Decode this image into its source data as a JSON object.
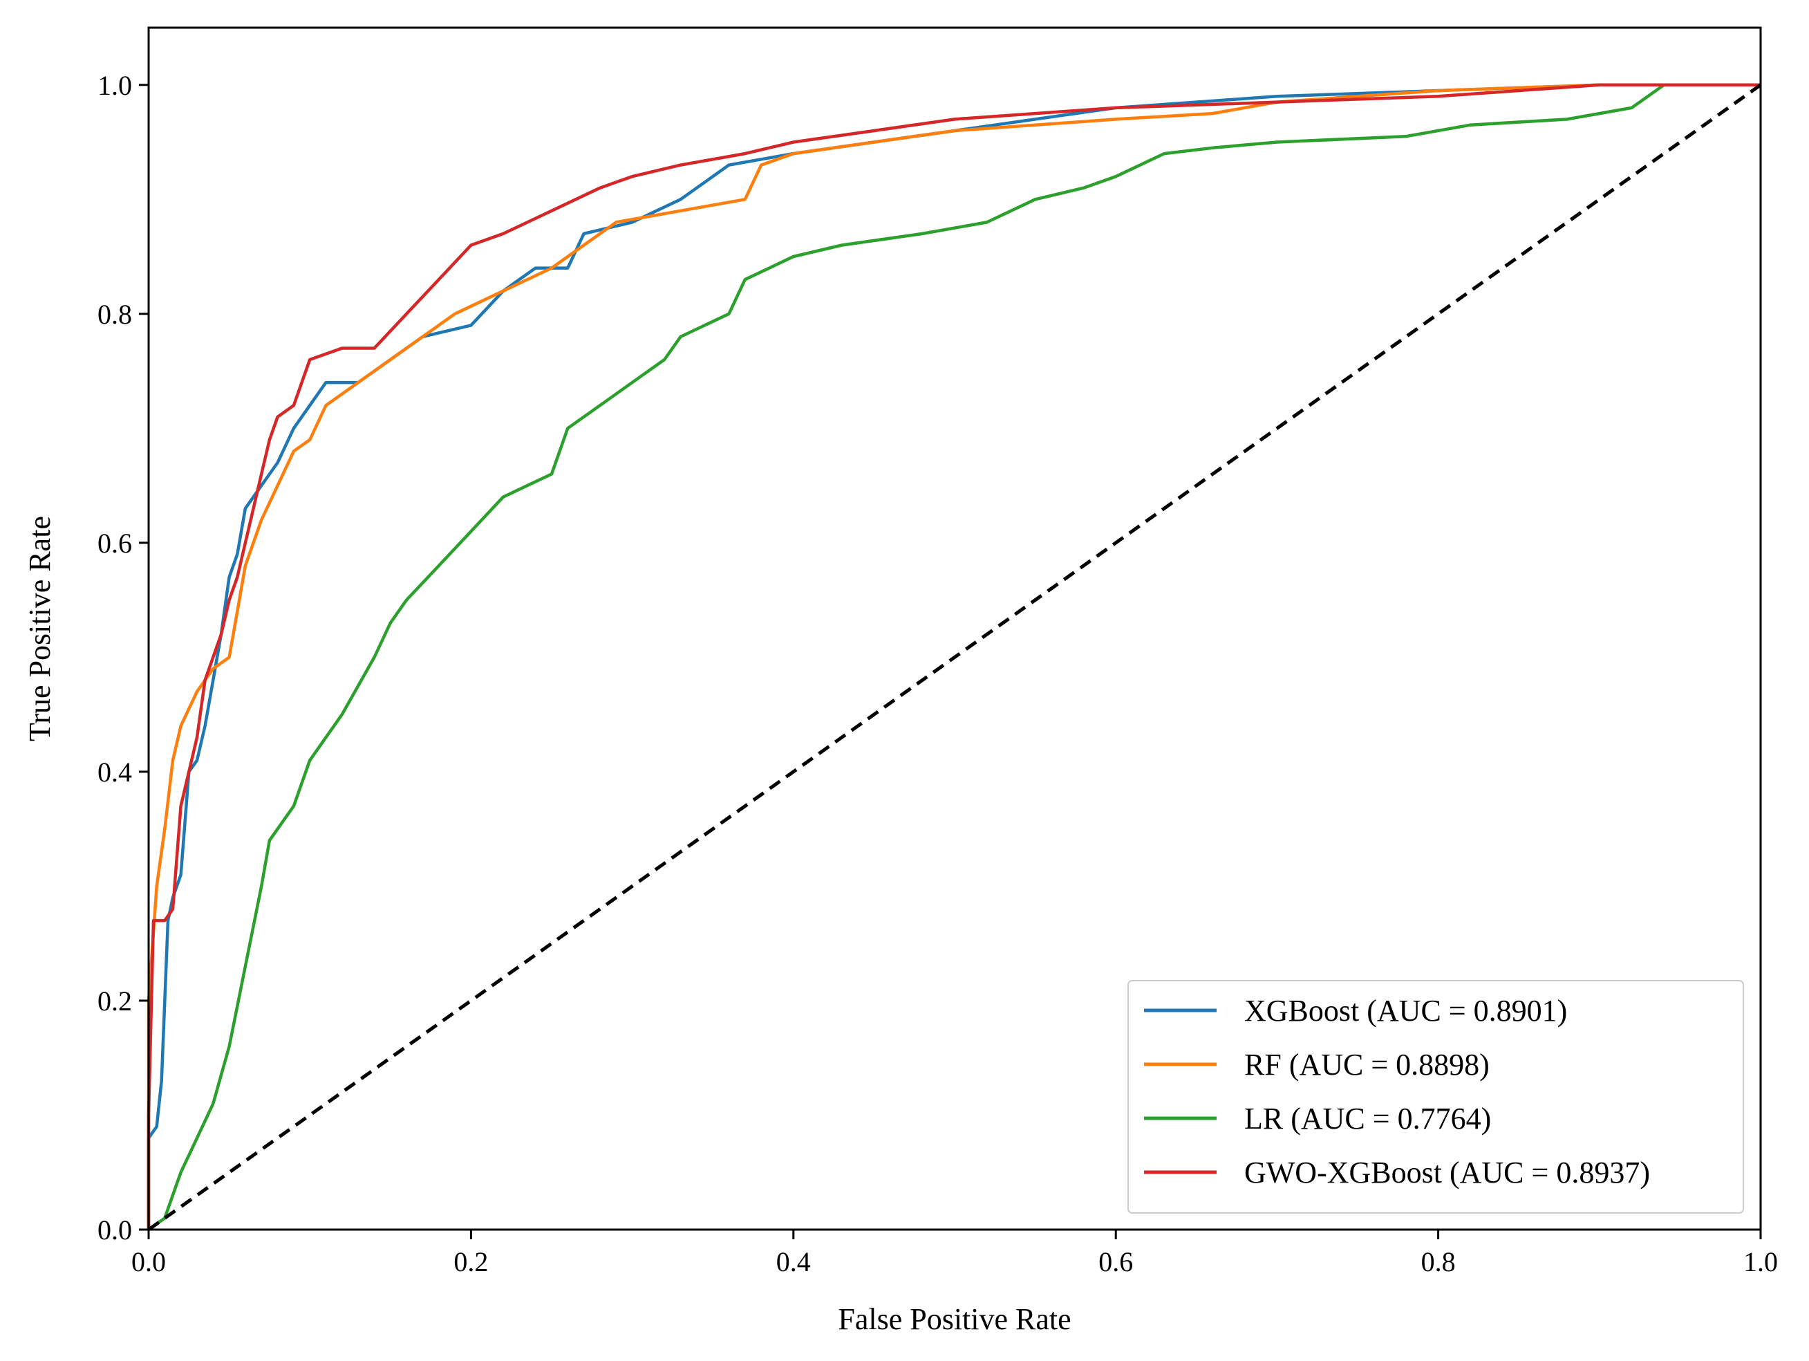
{
  "chart_data": {
    "type": "line",
    "title": "",
    "xlabel": "False Positive Rate",
    "ylabel": "True Positive Rate",
    "xlim": [
      0.0,
      1.0
    ],
    "ylim": [
      0.0,
      1.05
    ],
    "xticks": [
      "0.0",
      "0.2",
      "0.4",
      "0.6",
      "0.8",
      "1.0"
    ],
    "yticks": [
      "0.0",
      "0.2",
      "0.4",
      "0.6",
      "0.8",
      "1.0"
    ],
    "grid": false,
    "legend_position": "lower-right",
    "series": [
      {
        "name": "XGBoost (AUC = 0.8901)",
        "color": "#1f77b4",
        "points": [
          [
            0,
            0
          ],
          [
            0,
            0.08
          ],
          [
            0.005,
            0.09
          ],
          [
            0.008,
            0.13
          ],
          [
            0.012,
            0.27
          ],
          [
            0.015,
            0.29
          ],
          [
            0.02,
            0.31
          ],
          [
            0.025,
            0.4
          ],
          [
            0.03,
            0.41
          ],
          [
            0.035,
            0.44
          ],
          [
            0.04,
            0.48
          ],
          [
            0.045,
            0.52
          ],
          [
            0.05,
            0.57
          ],
          [
            0.055,
            0.59
          ],
          [
            0.06,
            0.63
          ],
          [
            0.065,
            0.64
          ],
          [
            0.07,
            0.65
          ],
          [
            0.075,
            0.66
          ],
          [
            0.08,
            0.67
          ],
          [
            0.09,
            0.7
          ],
          [
            0.1,
            0.72
          ],
          [
            0.11,
            0.74
          ],
          [
            0.13,
            0.74
          ],
          [
            0.15,
            0.76
          ],
          [
            0.17,
            0.78
          ],
          [
            0.2,
            0.79
          ],
          [
            0.22,
            0.82
          ],
          [
            0.24,
            0.84
          ],
          [
            0.26,
            0.84
          ],
          [
            0.27,
            0.87
          ],
          [
            0.3,
            0.88
          ],
          [
            0.33,
            0.9
          ],
          [
            0.36,
            0.93
          ],
          [
            0.4,
            0.94
          ],
          [
            0.45,
            0.95
          ],
          [
            0.5,
            0.96
          ],
          [
            0.55,
            0.97
          ],
          [
            0.6,
            0.98
          ],
          [
            0.65,
            0.985
          ],
          [
            0.7,
            0.99
          ],
          [
            0.8,
            0.995
          ],
          [
            0.9,
            1.0
          ],
          [
            1.0,
            1.0
          ]
        ]
      },
      {
        "name": "RF (AUC = 0.8898)",
        "color": "#ff7f0e",
        "points": [
          [
            0,
            0
          ],
          [
            0,
            0.2
          ],
          [
            0.005,
            0.3
          ],
          [
            0.01,
            0.35
          ],
          [
            0.015,
            0.41
          ],
          [
            0.02,
            0.44
          ],
          [
            0.03,
            0.47
          ],
          [
            0.04,
            0.49
          ],
          [
            0.05,
            0.5
          ],
          [
            0.055,
            0.54
          ],
          [
            0.06,
            0.58
          ],
          [
            0.07,
            0.62
          ],
          [
            0.08,
            0.65
          ],
          [
            0.09,
            0.68
          ],
          [
            0.1,
            0.69
          ],
          [
            0.11,
            0.72
          ],
          [
            0.13,
            0.74
          ],
          [
            0.15,
            0.76
          ],
          [
            0.17,
            0.78
          ],
          [
            0.19,
            0.8
          ],
          [
            0.22,
            0.82
          ],
          [
            0.25,
            0.84
          ],
          [
            0.27,
            0.86
          ],
          [
            0.29,
            0.88
          ],
          [
            0.33,
            0.89
          ],
          [
            0.37,
            0.9
          ],
          [
            0.38,
            0.93
          ],
          [
            0.4,
            0.94
          ],
          [
            0.45,
            0.95
          ],
          [
            0.5,
            0.96
          ],
          [
            0.55,
            0.965
          ],
          [
            0.6,
            0.97
          ],
          [
            0.66,
            0.975
          ],
          [
            0.7,
            0.985
          ],
          [
            0.8,
            0.995
          ],
          [
            0.9,
            1.0
          ],
          [
            1.0,
            1.0
          ]
        ]
      },
      {
        "name": "LR (AUC = 0.7764)",
        "color": "#2ca02c",
        "points": [
          [
            0,
            0
          ],
          [
            0.01,
            0.01
          ],
          [
            0.02,
            0.05
          ],
          [
            0.03,
            0.08
          ],
          [
            0.04,
            0.11
          ],
          [
            0.05,
            0.16
          ],
          [
            0.06,
            0.23
          ],
          [
            0.07,
            0.3
          ],
          [
            0.075,
            0.34
          ],
          [
            0.09,
            0.37
          ],
          [
            0.1,
            0.41
          ],
          [
            0.12,
            0.45
          ],
          [
            0.14,
            0.5
          ],
          [
            0.15,
            0.53
          ],
          [
            0.16,
            0.55
          ],
          [
            0.18,
            0.58
          ],
          [
            0.2,
            0.61
          ],
          [
            0.22,
            0.64
          ],
          [
            0.25,
            0.66
          ],
          [
            0.26,
            0.7
          ],
          [
            0.28,
            0.72
          ],
          [
            0.3,
            0.74
          ],
          [
            0.32,
            0.76
          ],
          [
            0.33,
            0.78
          ],
          [
            0.36,
            0.8
          ],
          [
            0.37,
            0.83
          ],
          [
            0.4,
            0.85
          ],
          [
            0.43,
            0.86
          ],
          [
            0.48,
            0.87
          ],
          [
            0.52,
            0.88
          ],
          [
            0.55,
            0.9
          ],
          [
            0.58,
            0.91
          ],
          [
            0.6,
            0.92
          ],
          [
            0.63,
            0.94
          ],
          [
            0.66,
            0.945
          ],
          [
            0.7,
            0.95
          ],
          [
            0.78,
            0.955
          ],
          [
            0.82,
            0.965
          ],
          [
            0.88,
            0.97
          ],
          [
            0.92,
            0.98
          ],
          [
            0.94,
            1.0
          ],
          [
            1.0,
            1.0
          ]
        ]
      },
      {
        "name": "GWO-XGBoost (AUC = 0.8937)",
        "color": "#d62728",
        "points": [
          [
            0,
            0
          ],
          [
            0,
            0.1
          ],
          [
            0.003,
            0.27
          ],
          [
            0.01,
            0.27
          ],
          [
            0.015,
            0.28
          ],
          [
            0.02,
            0.37
          ],
          [
            0.025,
            0.4
          ],
          [
            0.03,
            0.43
          ],
          [
            0.035,
            0.48
          ],
          [
            0.04,
            0.5
          ],
          [
            0.045,
            0.52
          ],
          [
            0.05,
            0.55
          ],
          [
            0.055,
            0.57
          ],
          [
            0.06,
            0.6
          ],
          [
            0.065,
            0.63
          ],
          [
            0.07,
            0.66
          ],
          [
            0.075,
            0.69
          ],
          [
            0.08,
            0.71
          ],
          [
            0.09,
            0.72
          ],
          [
            0.1,
            0.76
          ],
          [
            0.12,
            0.77
          ],
          [
            0.14,
            0.77
          ],
          [
            0.16,
            0.8
          ],
          [
            0.18,
            0.83
          ],
          [
            0.2,
            0.86
          ],
          [
            0.22,
            0.87
          ],
          [
            0.25,
            0.89
          ],
          [
            0.28,
            0.91
          ],
          [
            0.3,
            0.92
          ],
          [
            0.33,
            0.93
          ],
          [
            0.37,
            0.94
          ],
          [
            0.4,
            0.95
          ],
          [
            0.45,
            0.96
          ],
          [
            0.5,
            0.97
          ],
          [
            0.55,
            0.975
          ],
          [
            0.6,
            0.98
          ],
          [
            0.7,
            0.985
          ],
          [
            0.8,
            0.99
          ],
          [
            0.85,
            0.995
          ],
          [
            0.9,
            1.0
          ],
          [
            1.0,
            1.0
          ]
        ]
      },
      {
        "name": "chance",
        "color": "#000000",
        "dashed": true,
        "points": [
          [
            0,
            0
          ],
          [
            1,
            1
          ]
        ]
      }
    ]
  }
}
